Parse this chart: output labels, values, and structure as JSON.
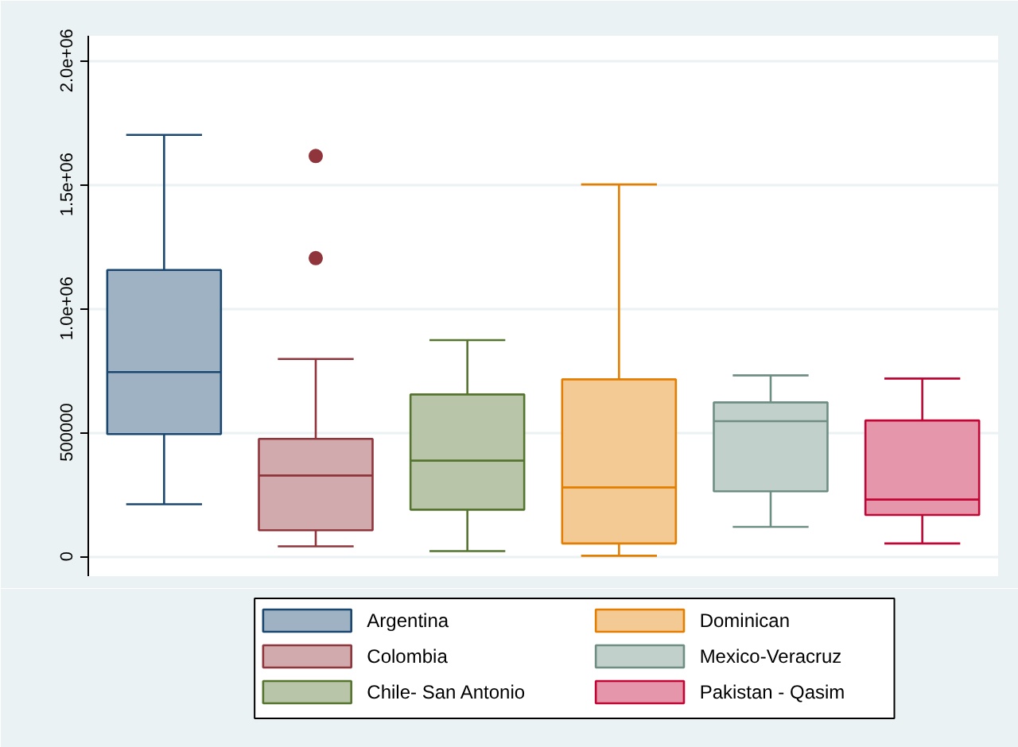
{
  "chart_data": {
    "type": "box",
    "categories": [
      null
    ],
    "ylim": [
      -80000,
      2100000
    ],
    "yticks": [
      0,
      500000,
      {
        "value": 1000000,
        "label": "1.0e+06"
      },
      {
        "value": 1500000,
        "label": "1.5e+06"
      },
      {
        "value": 2000000,
        "label": "2.0e+06"
      }
    ],
    "grid": "y",
    "legend": "bottom",
    "tick_labels": "y",
    "series": [
      {
        "name": "Argentina",
        "color": "#1a476f",
        "boxes": [
          {
            "low": 210000,
            "q1": 493000,
            "median": 743000,
            "q3": 1155000,
            "high": 1700000
          }
        ]
      },
      {
        "name": "Colombia",
        "color": "#90353b",
        "boxes": [
          {
            "low": 40000,
            "q1": 105000,
            "median": 326000,
            "q3": 474000,
            "high": 796000,
            "outliers": [
              1615000,
              1203000
            ]
          }
        ]
      },
      {
        "name": "Chile- San Antonio",
        "color": "#55752f",
        "boxes": [
          {
            "low": 21000,
            "q1": 188000,
            "median": 386000,
            "q3": 653000,
            "high": 872000
          }
        ]
      },
      {
        "name": "Dominican",
        "color": "#e37e00",
        "boxes": [
          {
            "low": 2000,
            "q1": 52000,
            "median": 278000,
            "q3": 714000,
            "high": 1500000
          }
        ]
      },
      {
        "name": "Mexico-Veracruz",
        "color": "#6e8e84",
        "boxes": [
          {
            "low": 119000,
            "q1": 262000,
            "median": 545000,
            "q3": 621000,
            "high": 730000
          }
        ]
      },
      {
        "name": "Pakistan - Qasim",
        "color": "#c10534",
        "boxes": [
          {
            "low": 52000,
            "q1": 167000,
            "median": 229000,
            "q3": 548000,
            "high": 717000
          }
        ]
      }
    ]
  }
}
